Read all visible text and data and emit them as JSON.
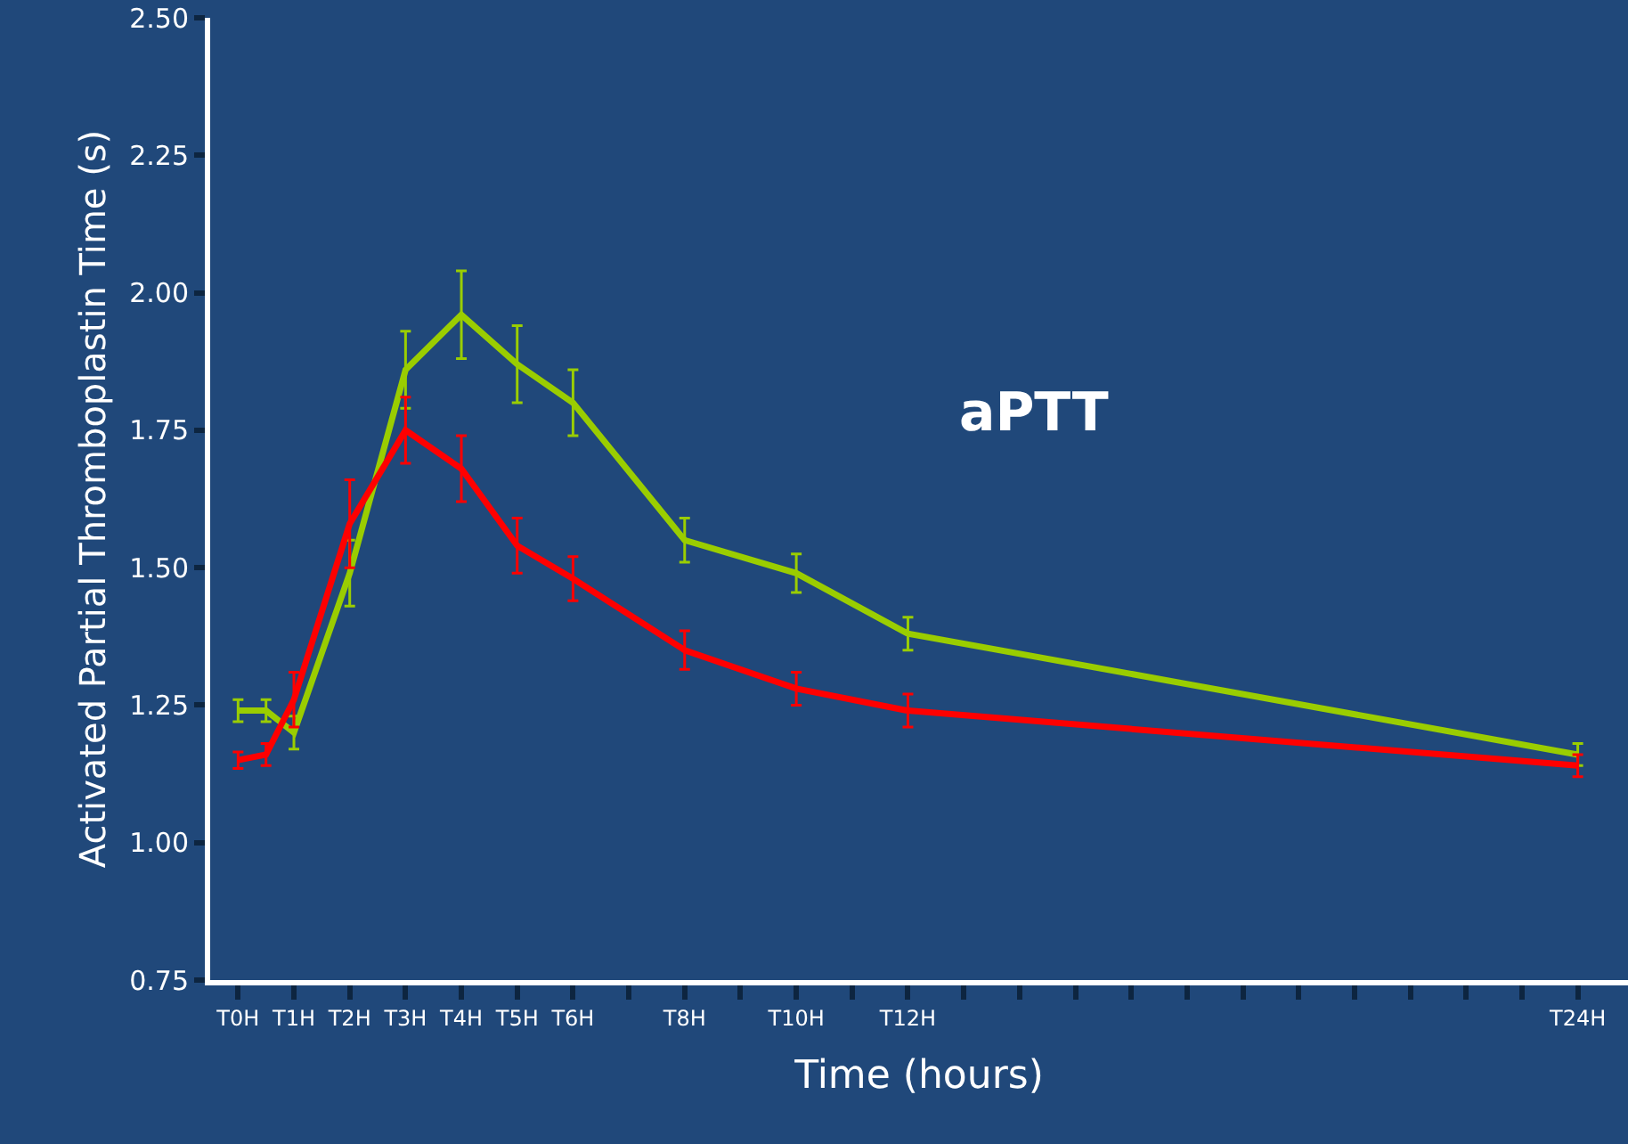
{
  "chart_data": {
    "type": "line",
    "title": "aPTT",
    "xlabel": "Time (hours)",
    "ylabel": "Activated Partial Thromboplastin Time (s)",
    "categories": [
      "T0H",
      null,
      "T1H",
      null,
      "T2H",
      null,
      "T3H",
      null,
      "T4H",
      null,
      "T5H",
      null,
      "T6H",
      null,
      null,
      null,
      "T8H",
      null,
      null,
      null,
      "T10H",
      null,
      null,
      null,
      "T12H",
      null,
      null,
      null,
      null,
      null,
      null,
      null,
      null,
      null,
      null,
      null,
      null,
      null,
      null,
      null,
      null,
      null,
      null,
      null,
      null,
      null,
      null,
      null,
      "T24H",
      null
    ],
    "series": [
      {
        "color": "#9acd00",
        "values": [
          1.24,
          1.24,
          1.2,
          null,
          1.49,
          null,
          1.86,
          null,
          1.96,
          null,
          1.87,
          null,
          1.8,
          null,
          null,
          null,
          1.55,
          null,
          null,
          null,
          1.49,
          null,
          null,
          null,
          1.38,
          null,
          null,
          null,
          null,
          null,
          null,
          null,
          null,
          null,
          null,
          null,
          null,
          null,
          null,
          null,
          null,
          null,
          null,
          null,
          null,
          null,
          null,
          null,
          1.16,
          null
        ],
        "errors": [
          0.02,
          0.02,
          0.03,
          null,
          0.06,
          null,
          0.07,
          null,
          0.08,
          null,
          0.07,
          null,
          0.06,
          null,
          null,
          null,
          0.04,
          null,
          null,
          null,
          0.035,
          null,
          null,
          null,
          0.03,
          null,
          null,
          null,
          null,
          null,
          null,
          null,
          null,
          null,
          null,
          null,
          null,
          null,
          null,
          null,
          null,
          null,
          null,
          null,
          null,
          null,
          null,
          null,
          0.02,
          null
        ]
      },
      {
        "color": "#ff0000",
        "values": [
          1.15,
          1.16,
          1.26,
          null,
          1.58,
          null,
          1.75,
          null,
          1.68,
          null,
          1.54,
          null,
          1.48,
          null,
          null,
          null,
          1.35,
          null,
          null,
          null,
          1.28,
          null,
          null,
          null,
          1.24,
          null,
          null,
          null,
          null,
          null,
          null,
          null,
          null,
          null,
          null,
          null,
          null,
          null,
          null,
          null,
          null,
          null,
          null,
          null,
          null,
          null,
          null,
          null,
          1.14,
          null
        ],
        "errors": [
          0.015,
          0.02,
          0.05,
          null,
          0.08,
          null,
          0.06,
          null,
          0.06,
          null,
          0.05,
          null,
          0.04,
          null,
          null,
          null,
          0.035,
          null,
          null,
          null,
          0.03,
          null,
          null,
          null,
          0.03,
          null,
          null,
          null,
          null,
          null,
          null,
          null,
          null,
          null,
          null,
          null,
          null,
          null,
          null,
          null,
          null,
          null,
          null,
          null,
          null,
          null,
          null,
          null,
          0.02,
          null
        ]
      }
    ],
    "ylim": [
      0.75,
      2.5
    ],
    "yticks": [
      {
        "value": 0.75,
        "label": "0.75"
      },
      {
        "value": 1,
        "label": "1.00"
      },
      {
        "value": 1.25,
        "label": "1.25"
      },
      {
        "value": 1.5,
        "label": "1.50"
      },
      {
        "value": 1.75,
        "label": "1.75"
      },
      {
        "value": 2,
        "label": "2.00"
      },
      {
        "value": 2.25,
        "label": "2.25"
      },
      {
        "value": 2.5,
        "label": "2.50"
      }
    ],
    "grid": false,
    "marker": "none",
    "line_style": "solid"
  }
}
